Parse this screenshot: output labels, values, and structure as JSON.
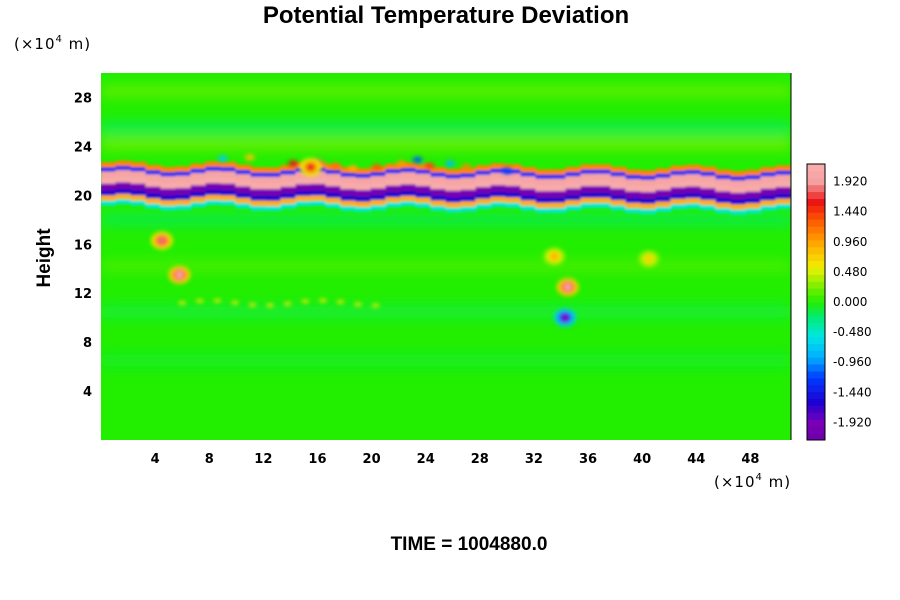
{
  "chart_data": {
    "type": "heatmap",
    "title": "Potential Temperature Deviation",
    "ylabel": "Height",
    "xlabel": "",
    "x_unit": {
      "prefix": "(×10",
      "exp": "4",
      "suffix": " m)"
    },
    "y_unit": {
      "prefix": "(×10",
      "exp": "4",
      "suffix": " m)"
    },
    "xlim": [
      0,
      51
    ],
    "ylim": [
      0,
      30
    ],
    "x_ticks": [
      "4",
      "8",
      "12",
      "16",
      "20",
      "24",
      "28",
      "32",
      "36",
      "40",
      "44",
      "48"
    ],
    "y_ticks": [
      "4",
      "8",
      "12",
      "16",
      "20",
      "24",
      "28"
    ],
    "colorbar": {
      "range": [
        -2.2,
        2.2
      ],
      "ticks": [
        "1.920",
        "1.440",
        "0.960",
        "0.480",
        "0.000",
        "-0.480",
        "-0.960",
        "-1.440",
        "-1.920"
      ],
      "tick_values": [
        1.92,
        1.44,
        0.96,
        0.48,
        0.0,
        -0.48,
        -0.96,
        -1.44,
        -1.92
      ]
    },
    "colors": {
      "background_field": "#22ee00",
      "high": "#f5a0a0",
      "low": "#7a00b8"
    },
    "grid": false,
    "features": [
      {
        "kind": "band",
        "label": "strong dipole layer",
        "x_range": [
          0,
          51
        ],
        "center_y_start": 20.8,
        "center_y_end": 20.4,
        "amplitude": 2.0
      },
      {
        "kind": "blob",
        "x": 4.5,
        "y": 16.3,
        "value": 1.8
      },
      {
        "kind": "blob",
        "x": 5.8,
        "y": 13.5,
        "value": 2.0
      },
      {
        "kind": "blob",
        "x": 34.5,
        "y": 12.5,
        "value": 2.0
      },
      {
        "kind": "blob",
        "x": 34.3,
        "y": 10.0,
        "value": -1.9
      },
      {
        "kind": "blob",
        "x": 33.5,
        "y": 15.0,
        "value": 0.9
      },
      {
        "kind": "blob",
        "x": 40.5,
        "y": 14.8,
        "value": 0.7
      },
      {
        "kind": "blob",
        "x": 15.5,
        "y": 22.3,
        "value": 1.6
      }
    ]
  },
  "footer": {
    "time_label": "TIME = 1004880.0"
  }
}
